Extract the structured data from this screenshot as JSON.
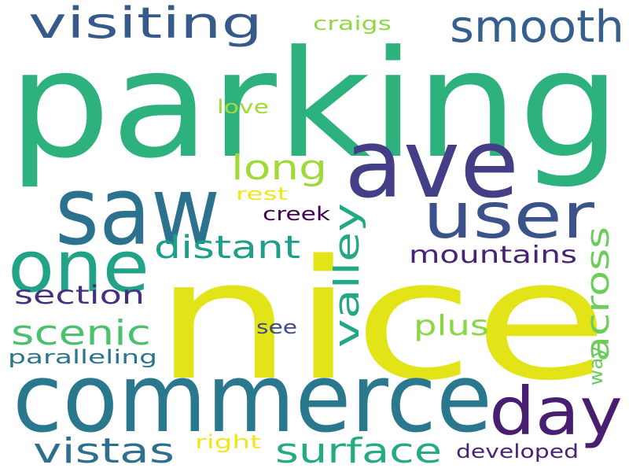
{
  "words": [
    {
      "text": "parking",
      "color": "#2db27d",
      "orientation": "horizontal"
    },
    {
      "text": "nice",
      "color": "#e2e418",
      "orientation": "horizontal"
    },
    {
      "text": "commerce",
      "color": "#2a788e",
      "orientation": "horizontal"
    },
    {
      "text": "saw",
      "color": "#2c728e",
      "orientation": "horizontal"
    },
    {
      "text": "ave",
      "color": "#433e85",
      "orientation": "horizontal"
    },
    {
      "text": "user",
      "color": "#3b528b",
      "orientation": "horizontal"
    },
    {
      "text": "one",
      "color": "#20a386",
      "orientation": "horizontal"
    },
    {
      "text": "day",
      "color": "#481f70",
      "orientation": "horizontal"
    },
    {
      "text": "visiting",
      "color": "#375a8c",
      "orientation": "horizontal"
    },
    {
      "text": "smooth",
      "color": "#355f8d",
      "orientation": "horizontal"
    },
    {
      "text": "surface",
      "color": "#25ab82",
      "orientation": "horizontal"
    },
    {
      "text": "vistas",
      "color": "#2e6f8e",
      "orientation": "horizontal"
    },
    {
      "text": "scenic",
      "color": "#4ac16d",
      "orientation": "horizontal"
    },
    {
      "text": "distant",
      "color": "#1f9e89",
      "orientation": "horizontal"
    },
    {
      "text": "long",
      "color": "#a0da39",
      "orientation": "horizontal"
    },
    {
      "text": "valley",
      "color": "#22a884",
      "orientation": "vertical"
    },
    {
      "text": "across",
      "color": "#6ccd5a",
      "orientation": "vertical"
    },
    {
      "text": "mountains",
      "color": "#482374",
      "orientation": "horizontal"
    },
    {
      "text": "section",
      "color": "#46307e",
      "orientation": "horizontal"
    },
    {
      "text": "plus",
      "color": "#8bd646",
      "orientation": "horizontal"
    },
    {
      "text": "paralleling",
      "color": "#2c738e",
      "orientation": "horizontal"
    },
    {
      "text": "developed",
      "color": "#482576",
      "orientation": "horizontal"
    },
    {
      "text": "craigs",
      "color": "#8fd744",
      "orientation": "horizontal"
    },
    {
      "text": "love",
      "color": "#a2da37",
      "orientation": "horizontal"
    },
    {
      "text": "rest",
      "color": "#f1e51d",
      "orientation": "horizontal"
    },
    {
      "text": "creek",
      "color": "#440154",
      "orientation": "horizontal"
    },
    {
      "text": "see",
      "color": "#3e4989",
      "orientation": "horizontal"
    },
    {
      "text": "way",
      "color": "#65cb5e",
      "orientation": "vertical"
    },
    {
      "text": "right",
      "color": "#f1e51d",
      "orientation": "horizontal"
    }
  ]
}
